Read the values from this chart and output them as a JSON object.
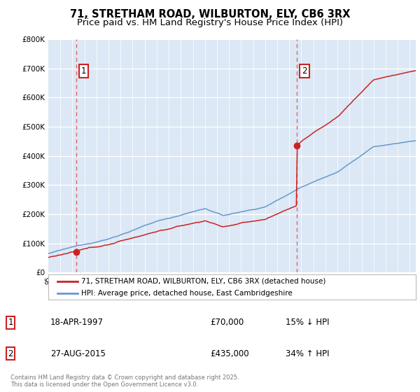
{
  "title": "71, STRETHAM ROAD, WILBURTON, ELY, CB6 3RX",
  "subtitle": "Price paid vs. HM Land Registry's House Price Index (HPI)",
  "sale1_date": 1997.3,
  "sale1_price": 70000,
  "sale2_date": 2015.65,
  "sale2_price": 435000,
  "sale1_label": "1",
  "sale2_label": "2",
  "red_line_label": "71, STRETHAM ROAD, WILBURTON, ELY, CB6 3RX (detached house)",
  "blue_line_label": "HPI: Average price, detached house, East Cambridgeshire",
  "table_row1": [
    "1",
    "18-APR-1997",
    "£70,000",
    "15% ↓ HPI"
  ],
  "table_row2": [
    "2",
    "27-AUG-2015",
    "£435,000",
    "34% ↑ HPI"
  ],
  "footnote": "Contains HM Land Registry data © Crown copyright and database right 2025.\nThis data is licensed under the Open Government Licence v3.0.",
  "ylim": [
    0,
    800000
  ],
  "xlim": [
    1995.0,
    2025.5
  ],
  "ylabel_ticks": [
    0,
    100000,
    200000,
    300000,
    400000,
    500000,
    600000,
    700000,
    800000
  ],
  "plot_bg_color": "#dce8f5",
  "grid_color": "#ffffff",
  "red_color": "#cc2222",
  "blue_color": "#6699cc",
  "dashed_color": "#dd6666",
  "title_fontsize": 10.5,
  "subtitle_fontsize": 9.5
}
